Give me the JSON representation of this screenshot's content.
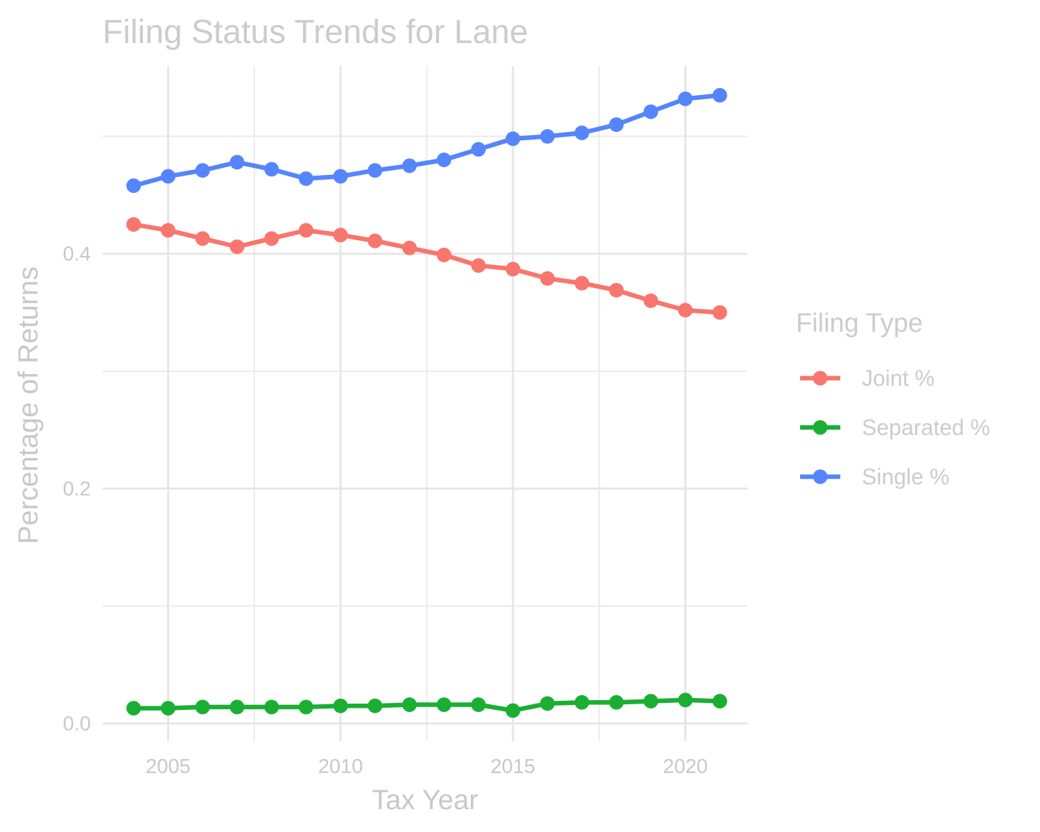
{
  "chart_data": {
    "type": "line",
    "title": "Filing Status Trends for Lane",
    "xlabel": "Tax Year",
    "ylabel": "Percentage of Returns",
    "x": [
      2004,
      2005,
      2006,
      2007,
      2008,
      2009,
      2010,
      2011,
      2012,
      2013,
      2014,
      2015,
      2016,
      2017,
      2018,
      2019,
      2020,
      2021
    ],
    "xlim": [
      2003.1,
      2021.8
    ],
    "ylim": [
      -0.015,
      0.56
    ],
    "x_ticks": [
      2005,
      2010,
      2015,
      2020
    ],
    "x_tick_labels": [
      "2005",
      "2010",
      "2015",
      "2020"
    ],
    "y_ticks": [
      0.0,
      0.2,
      0.4
    ],
    "y_tick_labels": [
      "0.0",
      "0.2",
      "0.4"
    ],
    "grid": true,
    "legend": {
      "title": "Filing Type",
      "position": "right"
    },
    "series": [
      {
        "name": "Joint %",
        "color": "#f8766d",
        "values": [
          0.425,
          0.42,
          0.413,
          0.406,
          0.413,
          0.42,
          0.416,
          0.411,
          0.405,
          0.399,
          0.39,
          0.387,
          0.379,
          0.375,
          0.369,
          0.36,
          0.352,
          0.35
        ]
      },
      {
        "name": "Separated %",
        "color": "#1aaf33",
        "values": [
          0.013,
          0.013,
          0.014,
          0.014,
          0.014,
          0.014,
          0.015,
          0.015,
          0.016,
          0.016,
          0.016,
          0.011,
          0.017,
          0.018,
          0.018,
          0.019,
          0.02,
          0.019
        ]
      },
      {
        "name": "Single %",
        "color": "#5585fd",
        "values": [
          0.458,
          0.466,
          0.471,
          0.478,
          0.472,
          0.464,
          0.466,
          0.471,
          0.475,
          0.48,
          0.489,
          0.498,
          0.5,
          0.503,
          0.51,
          0.521,
          0.532,
          0.535
        ]
      }
    ]
  }
}
